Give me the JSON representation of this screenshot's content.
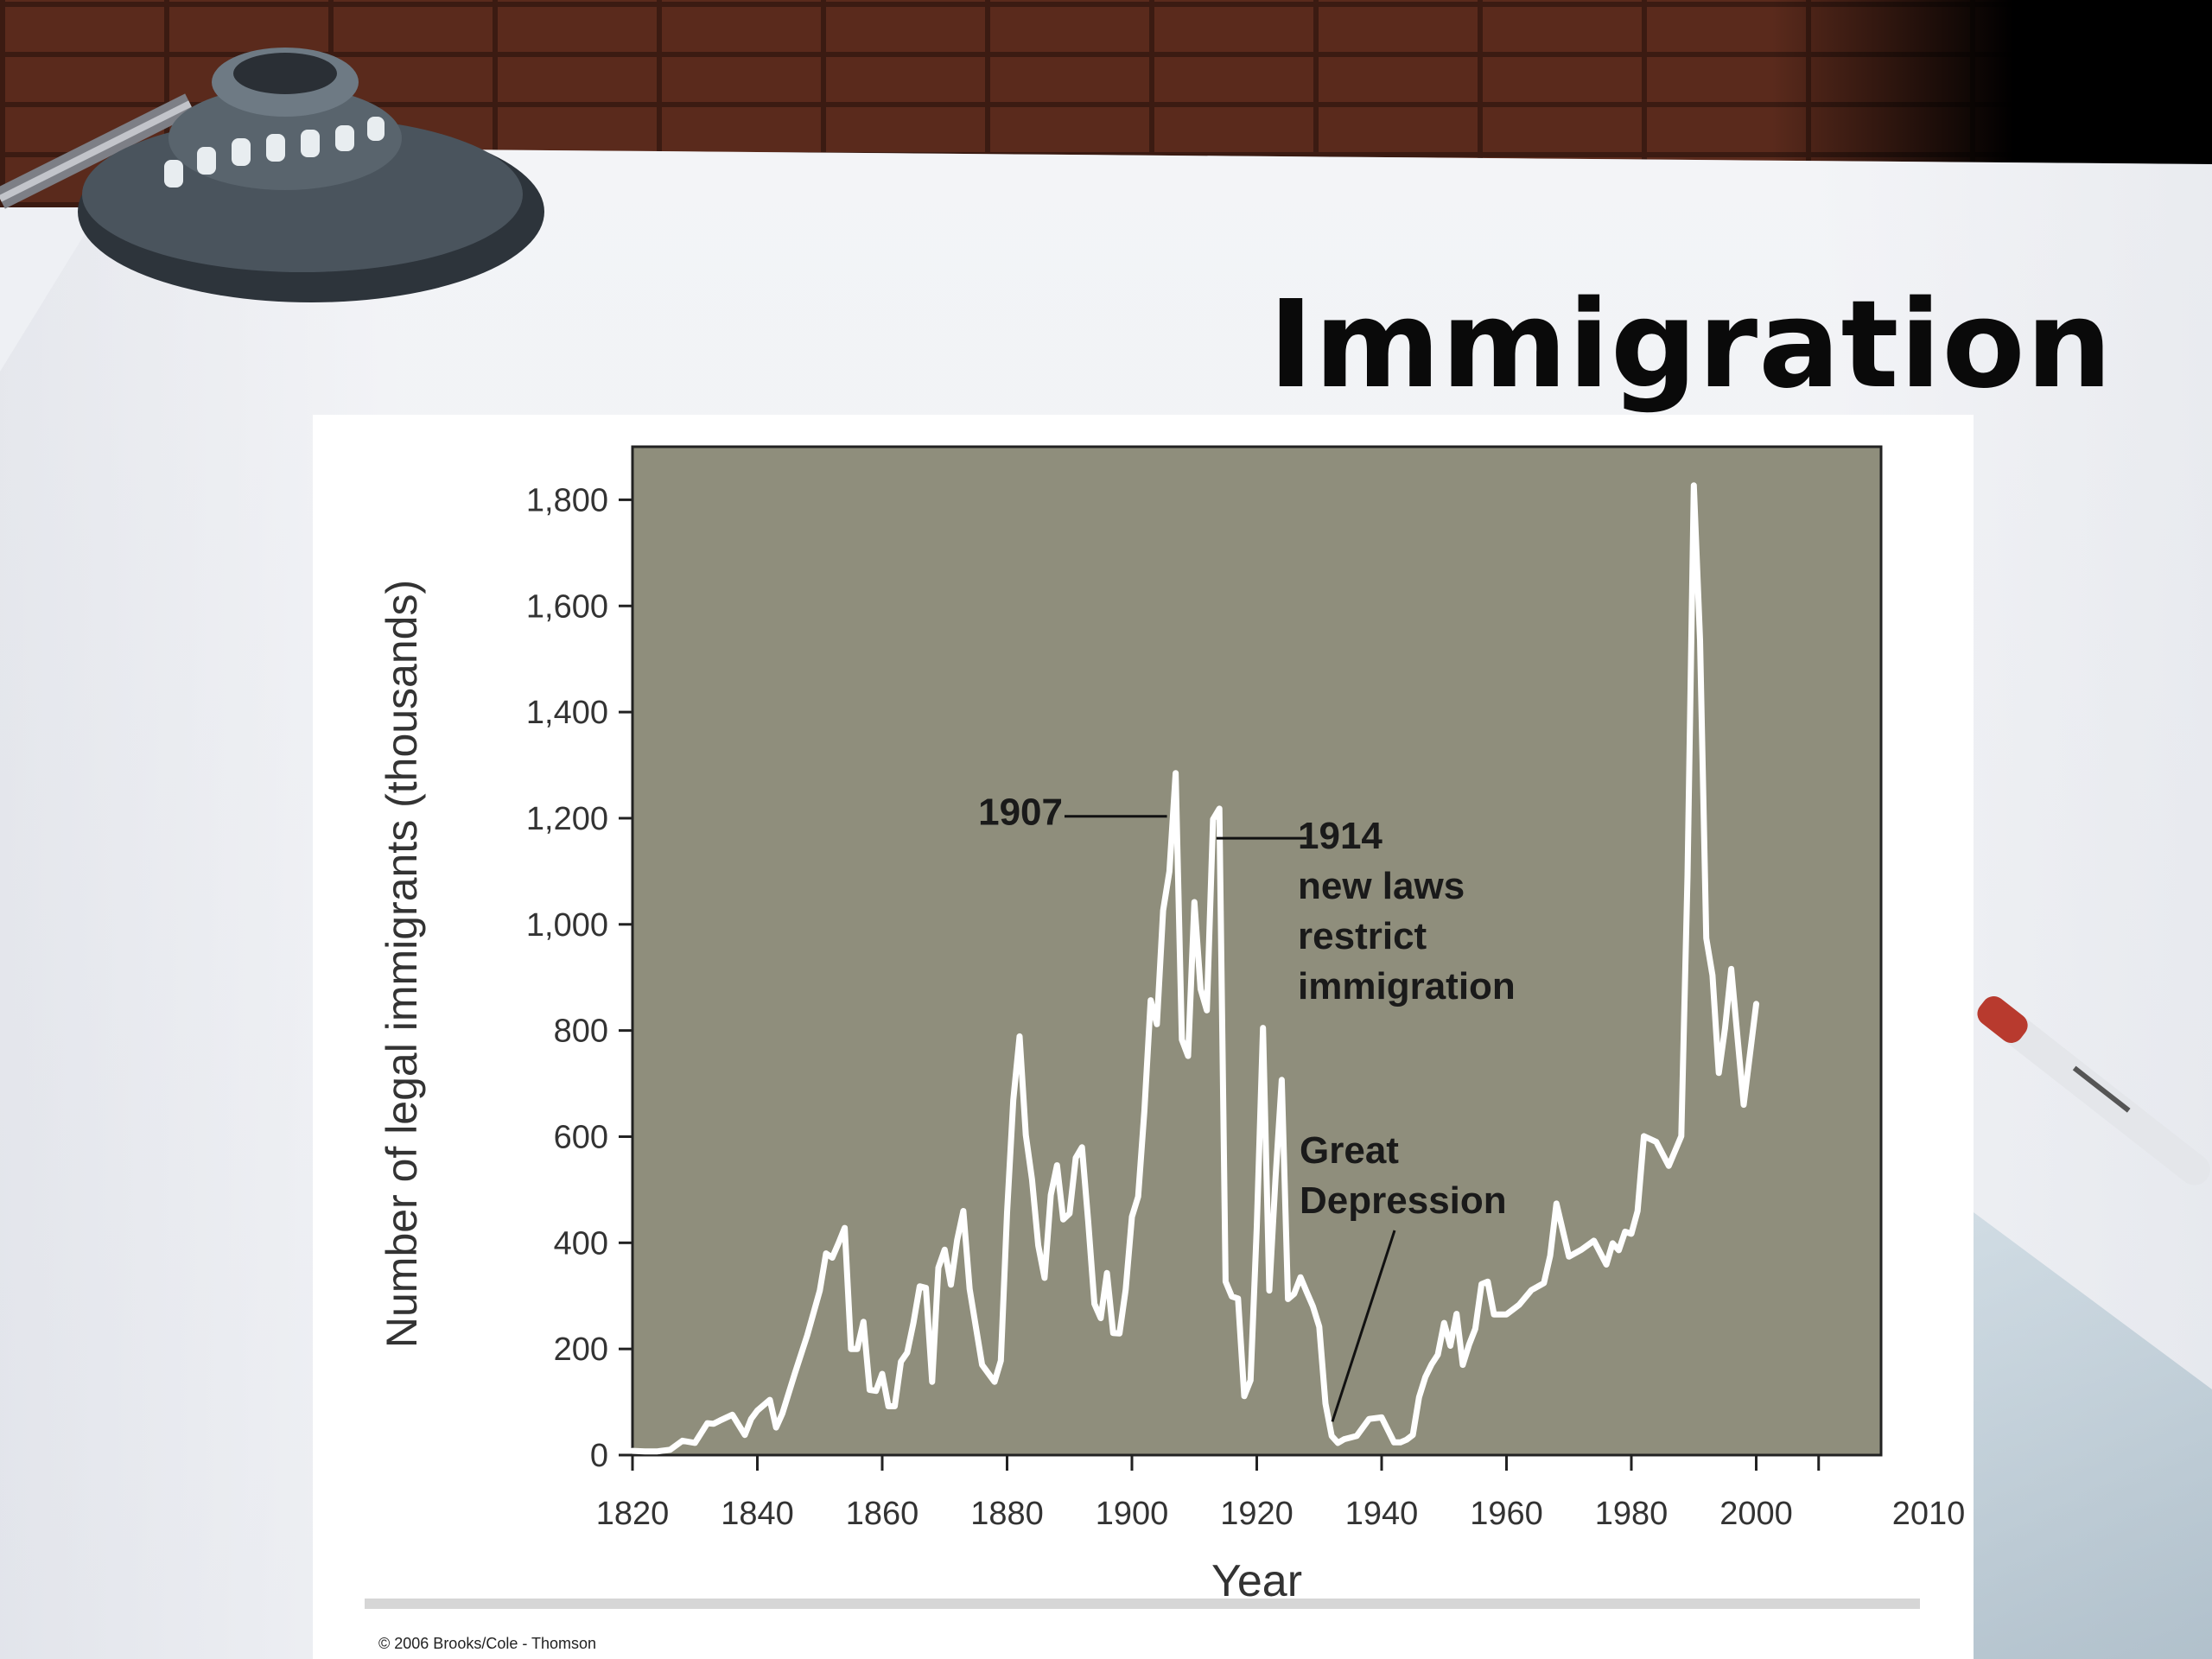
{
  "slide": {
    "title": "Immigration",
    "copyright": "© 2006 Brooks/Cole - Thomson"
  },
  "colors": {
    "plot_background": "#8f8e7c",
    "line": "#ffffff",
    "text": "#1a1a1a"
  },
  "chart_data": {
    "type": "line",
    "title": "",
    "xlabel": "Year",
    "ylabel": "Number of legal immigrants (thousands)",
    "xlim": [
      1820,
      2010
    ],
    "ylim": [
      0,
      1900
    ],
    "xticks": [
      1820,
      1840,
      1860,
      1880,
      1900,
      1920,
      1940,
      1960,
      1980,
      2000,
      2010
    ],
    "yticks": [
      0,
      200,
      400,
      600,
      800,
      1000,
      1200,
      1400,
      1600,
      1800
    ],
    "ytick_labels": [
      "0",
      "200",
      "400",
      "600",
      "800",
      "1,000",
      "1,200",
      "1,400",
      "1,600",
      "1,800"
    ],
    "grid": false,
    "legend": "none",
    "series": [
      {
        "x": [
          1820,
          1822,
          1824,
          1826,
          1828,
          1830,
          1832,
          1833,
          1834,
          1836,
          1838,
          1839,
          1840,
          1842,
          1843,
          1844,
          1846,
          1848,
          1850,
          1851,
          1852,
          1853,
          1854,
          1855,
          1856,
          1857,
          1858,
          1859,
          1860,
          1861,
          1862,
          1863,
          1864,
          1865,
          1866,
          1867,
          1868,
          1869,
          1870,
          1871,
          1872,
          1873,
          1874,
          1876,
          1878,
          1879,
          1880,
          1881,
          1882,
          1883,
          1884,
          1885,
          1886,
          1887,
          1888,
          1889,
          1890,
          1891,
          1892,
          1893,
          1894,
          1895,
          1896,
          1897,
          1898,
          1899,
          1900,
          1901,
          1902,
          1903,
          1904,
          1905,
          1906,
          1907,
          1908,
          1909,
          1910,
          1911,
          1912,
          1913,
          1914,
          1915,
          1916,
          1917,
          1918,
          1919,
          1920,
          1921,
          1922,
          1923,
          1924,
          1925,
          1926,
          1927,
          1928,
          1929,
          1930,
          1931,
          1932,
          1933,
          1934,
          1936,
          1938,
          1940,
          1942,
          1943,
          1944,
          1945,
          1946,
          1947,
          1948,
          1949,
          1950,
          1951,
          1952,
          1953,
          1954,
          1955,
          1956,
          1957,
          1958,
          1960,
          1962,
          1964,
          1966,
          1967,
          1968,
          1970,
          1972,
          1974,
          1976,
          1977,
          1978,
          1979,
          1980,
          1981,
          1982,
          1984,
          1986,
          1988,
          1989,
          1990,
          1991,
          1992,
          1993,
          1994,
          1995,
          1996,
          1998,
          2000
        ],
        "y": [
          8,
          7,
          7,
          10,
          27,
          23,
          60,
          59,
          65,
          76,
          38,
          68,
          84,
          104,
          52,
          78,
          154,
          226,
          310,
          380,
          372,
          399,
          428,
          200,
          200,
          251,
          123,
          121,
          153,
          92,
          92,
          176,
          193,
          249,
          318,
          315,
          138,
          353,
          387,
          321,
          405,
          460,
          313,
          170,
          138,
          178,
          457,
          669,
          789,
          603,
          519,
          395,
          334,
          490,
          546,
          444,
          455,
          560,
          580,
          440,
          285,
          258,
          343,
          230,
          229,
          312,
          449,
          487,
          648,
          857,
          812,
          1026,
          1100,
          1285,
          783,
          752,
          1042,
          878,
          838,
          1198,
          1218,
          327,
          299,
          295,
          111,
          141,
          430,
          805,
          310,
          522,
          707,
          294,
          304,
          335,
          307,
          280,
          242,
          97,
          36,
          23,
          30,
          36,
          68,
          71,
          24,
          24,
          29,
          38,
          109,
          147,
          171,
          189,
          249,
          206,
          266,
          170,
          208,
          238,
          322,
          327,
          265,
          265,
          283,
          311,
          324,
          376,
          474,
          374,
          387,
          404,
          359,
          399,
          386,
          421,
          417,
          460,
          601,
          590,
          545,
          601,
          1091,
          1827,
          1536,
          974,
          904,
          720,
          804,
          916,
          660,
          850
        ]
      }
    ],
    "annotations": [
      {
        "id": "a1907",
        "lines": [
          "1907"
        ],
        "x": 1907,
        "y": 1285
      },
      {
        "id": "a1914",
        "lines": [
          "1914",
          "new laws",
          "restrict",
          "immigration"
        ],
        "x": 1913,
        "y": 1198
      },
      {
        "id": "adepression",
        "lines": [
          "Great",
          "Depression"
        ],
        "x": 1931,
        "y": 50
      }
    ]
  }
}
